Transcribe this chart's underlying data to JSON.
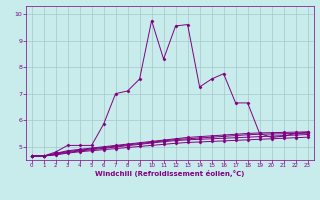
{
  "xlabel": "Windchill (Refroidissement éolien,°C)",
  "bg_color": "#c8ecec",
  "line_color": "#800080",
  "grid_color": "#a8c8c8",
  "xlim": [
    -0.5,
    23.5
  ],
  "ylim": [
    4.5,
    10.3
  ],
  "xticks": [
    0,
    1,
    2,
    3,
    4,
    5,
    6,
    7,
    8,
    9,
    10,
    11,
    12,
    13,
    14,
    15,
    16,
    17,
    18,
    19,
    20,
    21,
    22,
    23
  ],
  "yticks": [
    5,
    6,
    7,
    8,
    9,
    10
  ],
  "series": [
    {
      "x": [
        0,
        1,
        2,
        3,
        4,
        5,
        6,
        7,
        8,
        9,
        10,
        11,
        12,
        13,
        14,
        15,
        16,
        17,
        18,
        19,
        20,
        21,
        22,
        23
      ],
      "y": [
        4.65,
        4.65,
        4.8,
        5.05,
        5.05,
        5.05,
        5.85,
        7.0,
        7.1,
        7.55,
        9.75,
        8.3,
        9.55,
        9.6,
        7.25,
        7.55,
        7.75,
        6.65,
        6.65,
        5.5,
        5.35,
        5.4,
        5.5,
        5.55
      ]
    },
    {
      "x": [
        0,
        1,
        2,
        3,
        4,
        5,
        6,
        7,
        8,
        9,
        10,
        11,
        12,
        13,
        14,
        15,
        16,
        17,
        18,
        19,
        20,
        21,
        22,
        23
      ],
      "y": [
        4.65,
        4.65,
        4.75,
        4.85,
        4.9,
        4.95,
        5.0,
        5.05,
        5.1,
        5.15,
        5.2,
        5.25,
        5.3,
        5.35,
        5.38,
        5.41,
        5.44,
        5.47,
        5.5,
        5.52,
        5.53,
        5.54,
        5.55,
        5.56
      ]
    },
    {
      "x": [
        0,
        1,
        2,
        3,
        4,
        5,
        6,
        7,
        8,
        9,
        10,
        11,
        12,
        13,
        14,
        15,
        16,
        17,
        18,
        19,
        20,
        21,
        22,
        23
      ],
      "y": [
        4.65,
        4.65,
        4.73,
        4.82,
        4.87,
        4.92,
        4.97,
        5.02,
        5.07,
        5.12,
        5.17,
        5.22,
        5.27,
        5.3,
        5.33,
        5.36,
        5.39,
        5.42,
        5.45,
        5.47,
        5.48,
        5.49,
        5.5,
        5.51
      ]
    },
    {
      "x": [
        0,
        1,
        2,
        3,
        4,
        5,
        6,
        7,
        8,
        9,
        10,
        11,
        12,
        13,
        14,
        15,
        16,
        17,
        18,
        19,
        20,
        21,
        22,
        23
      ],
      "y": [
        4.65,
        4.65,
        4.71,
        4.79,
        4.84,
        4.89,
        4.94,
        4.99,
        5.04,
        5.09,
        5.14,
        5.19,
        5.23,
        5.26,
        5.28,
        5.3,
        5.32,
        5.34,
        5.36,
        5.38,
        5.4,
        5.42,
        5.44,
        5.46
      ]
    },
    {
      "x": [
        0,
        1,
        2,
        3,
        4,
        5,
        6,
        7,
        8,
        9,
        10,
        11,
        12,
        13,
        14,
        15,
        16,
        17,
        18,
        19,
        20,
        21,
        22,
        23
      ],
      "y": [
        4.65,
        4.65,
        4.69,
        4.76,
        4.81,
        4.85,
        4.89,
        4.93,
        4.97,
        5.01,
        5.05,
        5.09,
        5.13,
        5.16,
        5.18,
        5.2,
        5.22,
        5.24,
        5.26,
        5.28,
        5.3,
        5.32,
        5.34,
        5.36
      ]
    }
  ]
}
